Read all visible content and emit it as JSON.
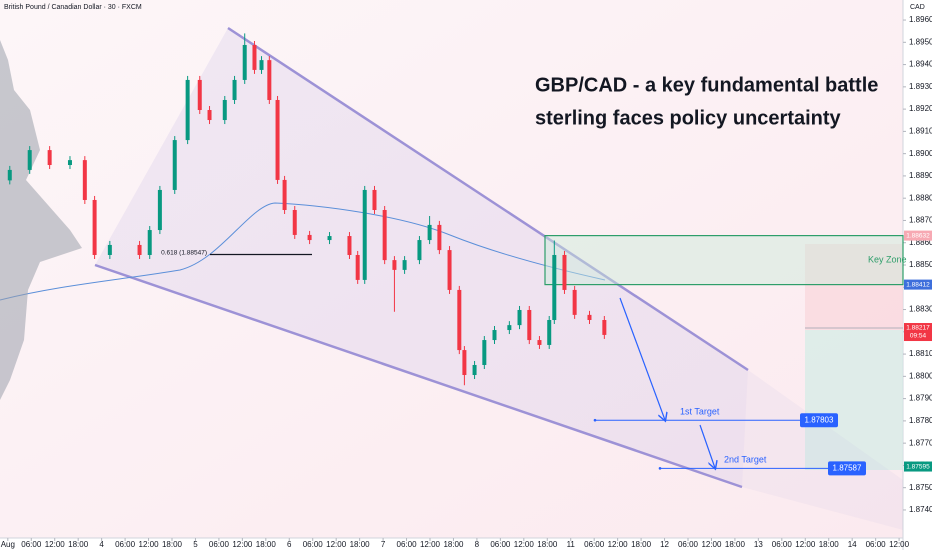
{
  "header": "British Pound / Canadian Dollar · 30 · FXCM",
  "chart_data": {
    "type": "candlestick",
    "currency": "CAD",
    "title_lines": [
      "GBP/CAD - a key fundamental battle",
      "sterling faces policy uncertainty"
    ],
    "x": [
      0.5,
      5.6,
      10.7,
      15.9,
      19.7,
      22.2,
      26.1,
      33.7,
      36.3,
      38.9,
      42.7,
      46.0,
      49.1,
      51.6,
      55.5,
      58.0,
      60.6,
      63.1,
      64.9,
      66.9,
      69.0,
      70.8,
      73.4,
      77.2,
      82.3,
      87.4,
      89.5,
      91.3,
      93.8,
      96.4,
      98.9,
      101.5,
      105.3,
      107.9,
      110.4,
      113.0,
      115.5,
      116.8,
      119.4,
      121.9,
      124.5,
      128.3,
      130.9,
      133.4,
      136.0,
      138.5,
      139.8,
      142.4,
      145.0,
      148.8,
      152.6
    ],
    "open": [
      1.8888,
      1.88927,
      1.89016,
      1.88949,
      1.88971,
      1.88792,
      1.88545,
      1.8859,
      1.88545,
      1.88657,
      1.88837,
      1.89061,
      1.89331,
      1.89196,
      1.89151,
      1.89241,
      1.89331,
      1.89488,
      1.89376,
      1.8942,
      1.89241,
      1.88882,
      1.88747,
      1.88635,
      1.88612,
      1.8863,
      1.88545,
      1.88433,
      1.88837,
      1.88747,
      1.88522,
      1.88478,
      1.88522,
      1.88612,
      1.8868,
      1.88567,
      1.88388,
      1.88118,
      1.88006,
      1.88051,
      1.88163,
      1.88208,
      1.8823,
      1.88298,
      1.88163,
      1.88141,
      1.88253,
      1.88545,
      1.88388,
      1.88276,
      1.88253
    ],
    "high": [
      1.88945,
      1.89034,
      1.89034,
      1.88989,
      1.88989,
      1.8881,
      1.88608,
      1.88608,
      1.88675,
      1.88855,
      1.89079,
      1.89349,
      1.89349,
      1.89214,
      1.89259,
      1.89349,
      1.8954,
      1.89506,
      1.89438,
      1.89438,
      1.89259,
      1.889,
      1.88765,
      1.88653,
      1.88648,
      1.88648,
      1.88563,
      1.88855,
      1.88855,
      1.88765,
      1.8854,
      1.8854,
      1.8863,
      1.8872,
      1.88698,
      1.88585,
      1.88406,
      1.88136,
      1.88069,
      1.88181,
      1.88226,
      1.88248,
      1.88316,
      1.88316,
      1.88181,
      1.88271,
      1.8861,
      1.88563,
      1.88406,
      1.88294,
      1.88271
    ],
    "low": [
      1.88862,
      1.88909,
      1.88931,
      1.88931,
      1.88774,
      1.88527,
      1.88527,
      1.88527,
      1.88527,
      1.88639,
      1.88819,
      1.89043,
      1.89178,
      1.89133,
      1.89133,
      1.89223,
      1.89313,
      1.89358,
      1.89358,
      1.89223,
      1.88864,
      1.88729,
      1.88617,
      1.88594,
      1.88594,
      1.88527,
      1.88415,
      1.88415,
      1.88729,
      1.88504,
      1.8829,
      1.8846,
      1.88504,
      1.88594,
      1.88549,
      1.8837,
      1.881,
      1.8796,
      1.87988,
      1.88033,
      1.88145,
      1.8819,
      1.88212,
      1.88145,
      1.88123,
      1.88123,
      1.88235,
      1.8837,
      1.88258,
      1.88235,
      1.88168
    ],
    "close": [
      1.88927,
      1.89016,
      1.88949,
      1.88971,
      1.88792,
      1.88545,
      1.8859,
      1.88545,
      1.88657,
      1.88837,
      1.89061,
      1.89331,
      1.89196,
      1.89151,
      1.89241,
      1.89331,
      1.89488,
      1.89376,
      1.8942,
      1.89241,
      1.88882,
      1.88747,
      1.88635,
      1.88612,
      1.8863,
      1.88545,
      1.88433,
      1.88837,
      1.88747,
      1.88522,
      1.88478,
      1.88522,
      1.88612,
      1.8868,
      1.88567,
      1.88388,
      1.88118,
      1.88006,
      1.88051,
      1.88163,
      1.88208,
      1.8823,
      1.88298,
      1.88163,
      1.88141,
      1.88253,
      1.88545,
      1.88388,
      1.88276,
      1.88253,
      1.88186
    ],
    "up_color": "#089981",
    "down_color": "#f23645",
    "xlim": [
      -2,
      229
    ],
    "ylim": [
      1.8731,
      1.8969
    ],
    "xticks": [
      {
        "value": 0,
        "label": "Aug"
      },
      {
        "value": 6,
        "label": "06:00"
      },
      {
        "value": 12,
        "label": "12:00"
      },
      {
        "value": 18,
        "label": "18:00"
      },
      {
        "value": 24,
        "label": "4"
      },
      {
        "value": 30,
        "label": "06:00"
      },
      {
        "value": 36,
        "label": "12:00"
      },
      {
        "value": 42,
        "label": "18:00"
      },
      {
        "value": 48,
        "label": "5"
      },
      {
        "value": 54,
        "label": "06:00"
      },
      {
        "value": 60,
        "label": "12:00"
      },
      {
        "value": 66,
        "label": "18:00"
      },
      {
        "value": 72,
        "label": "6"
      },
      {
        "value": 78,
        "label": "06:00"
      },
      {
        "value": 84,
        "label": "12:00"
      },
      {
        "value": 90,
        "label": "18:00"
      },
      {
        "value": 96,
        "label": "7"
      },
      {
        "value": 102,
        "label": "06:00"
      },
      {
        "value": 108,
        "label": "12:00"
      },
      {
        "value": 114,
        "label": "18:00"
      },
      {
        "value": 120,
        "label": "8"
      },
      {
        "value": 126,
        "label": "06:00"
      },
      {
        "value": 132,
        "label": "12:00"
      },
      {
        "value": 138,
        "label": "18:00"
      },
      {
        "value": 144,
        "label": "11"
      },
      {
        "value": 150,
        "label": "06:00"
      },
      {
        "value": 156,
        "label": "12:00"
      },
      {
        "value": 162,
        "label": "18:00"
      },
      {
        "value": 168,
        "label": "12"
      },
      {
        "value": 174,
        "label": "06:00"
      },
      {
        "value": 180,
        "label": "12:00"
      },
      {
        "value": 186,
        "label": "18:00"
      },
      {
        "value": 192,
        "label": "13"
      },
      {
        "value": 198,
        "label": "06:00"
      },
      {
        "value": 204,
        "label": "12:00"
      },
      {
        "value": 210,
        "label": "18:00"
      },
      {
        "value": 216,
        "label": "14"
      },
      {
        "value": 222,
        "label": "06:00"
      },
      {
        "value": 228,
        "label": "12:00"
      }
    ],
    "yticks": [
      {
        "value": 1.896,
        "label": "1.89600"
      },
      {
        "value": 1.895,
        "label": "1.89500"
      },
      {
        "value": 1.894,
        "label": "1.89400"
      },
      {
        "value": 1.893,
        "label": "1.89300"
      },
      {
        "value": 1.892,
        "label": "1.89200"
      },
      {
        "value": 1.891,
        "label": "1.89100"
      },
      {
        "value": 1.89,
        "label": "1.89000"
      },
      {
        "value": 1.889,
        "label": "1.88900"
      },
      {
        "value": 1.888,
        "label": "1.88800"
      },
      {
        "value": 1.887,
        "label": "1.88700"
      },
      {
        "value": 1.886,
        "label": "1.88600"
      },
      {
        "value": 1.885,
        "label": "1.88500"
      },
      {
        "value": 1.884,
        "label": "1.88400"
      },
      {
        "value": 1.883,
        "label": "1.88300"
      },
      {
        "value": 1.882,
        "label": "1.88200"
      },
      {
        "value": 1.881,
        "label": "1.88100"
      },
      {
        "value": 1.88,
        "label": "1.88000"
      },
      {
        "value": 1.879,
        "label": "1.87900"
      },
      {
        "value": 1.878,
        "label": "1.87800"
      },
      {
        "value": 1.877,
        "label": "1.87700"
      },
      {
        "value": 1.876,
        "label": "1.87600"
      },
      {
        "value": 1.875,
        "label": "1.87500"
      },
      {
        "value": 1.874,
        "label": "1.87400"
      }
    ],
    "fib": {
      "label": "0.618 (1.88547)",
      "value": 1.88547
    },
    "key_zone": {
      "label": "Key Zone",
      "top": 1.88632,
      "bottom": 1.88412
    },
    "targets": [
      {
        "label": "1st Target",
        "value": 1.87803
      },
      {
        "label": "2nd Target",
        "value": 1.87587
      }
    ],
    "price_markers": [
      {
        "value": 1.88632,
        "color": "#f7a9b3"
      },
      {
        "value": 1.88412,
        "color": "#3d6fdc"
      },
      {
        "value": 1.88217,
        "color": "#f23645",
        "countdown": "09:54"
      },
      {
        "value": 1.87595,
        "color": "#089981"
      }
    ]
  }
}
